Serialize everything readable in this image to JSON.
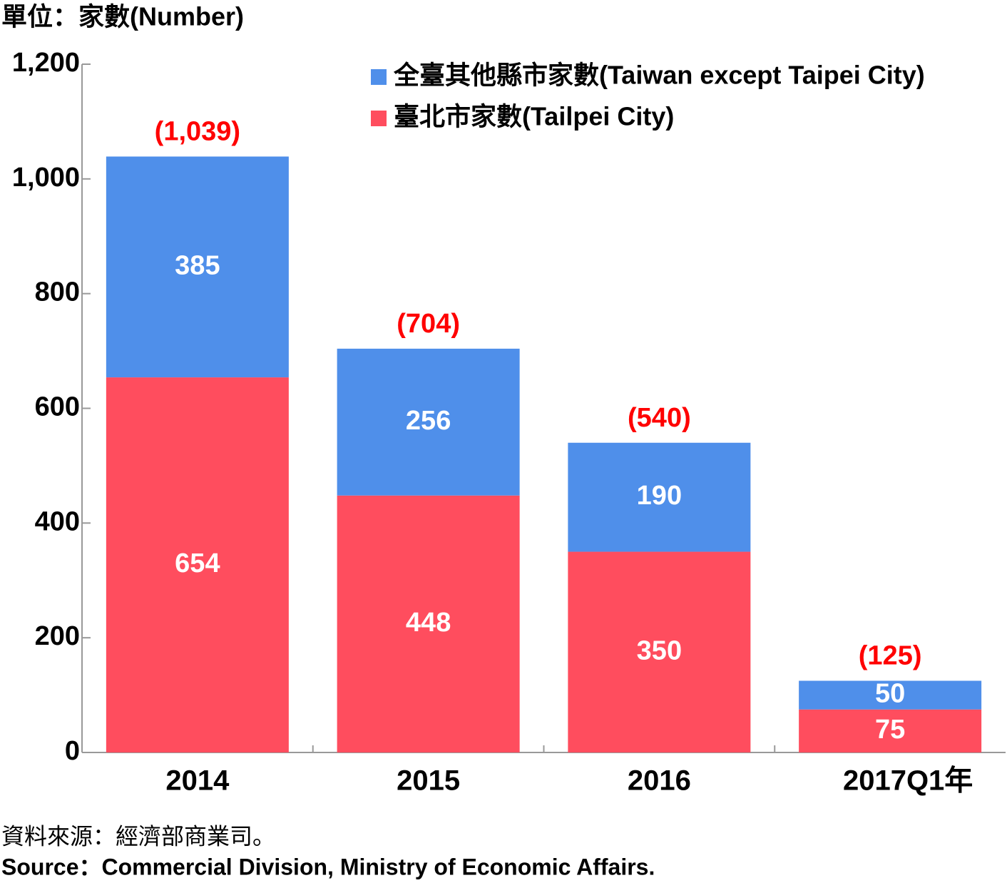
{
  "chart_data": {
    "type": "stacked_bar",
    "y_axis_label": "單位：家數(Number)",
    "categories": [
      "2014",
      "2015",
      "2016",
      "2017Q1年"
    ],
    "series": [
      {
        "name": "臺北市家數(Tailpei City)",
        "color": "#ff4d5e",
        "values": [
          654,
          448,
          350,
          75
        ]
      },
      {
        "name": "全臺其他縣市家數(Taiwan except Taipei City)",
        "color": "#4f8fea",
        "values": [
          385,
          256,
          190,
          50
        ]
      }
    ],
    "totals": {
      "values": [
        1039,
        704,
        540,
        125
      ],
      "value_labels": [
        "(1,039)",
        "(704)",
        "(540)",
        "(125)"
      ],
      "color": "#ff0000"
    },
    "ylim": [
      0,
      1200
    ],
    "yticks": [
      0,
      200,
      400,
      600,
      800,
      {
        "value": 1000,
        "label": "1,000"
      },
      {
        "value": 1200,
        "label": "1,200"
      }
    ],
    "legend": "top-right",
    "source_zh": "資料來源：經濟部商業司。",
    "source_en": "Source：Commercial Division, Ministry of Economic Affairs."
  }
}
